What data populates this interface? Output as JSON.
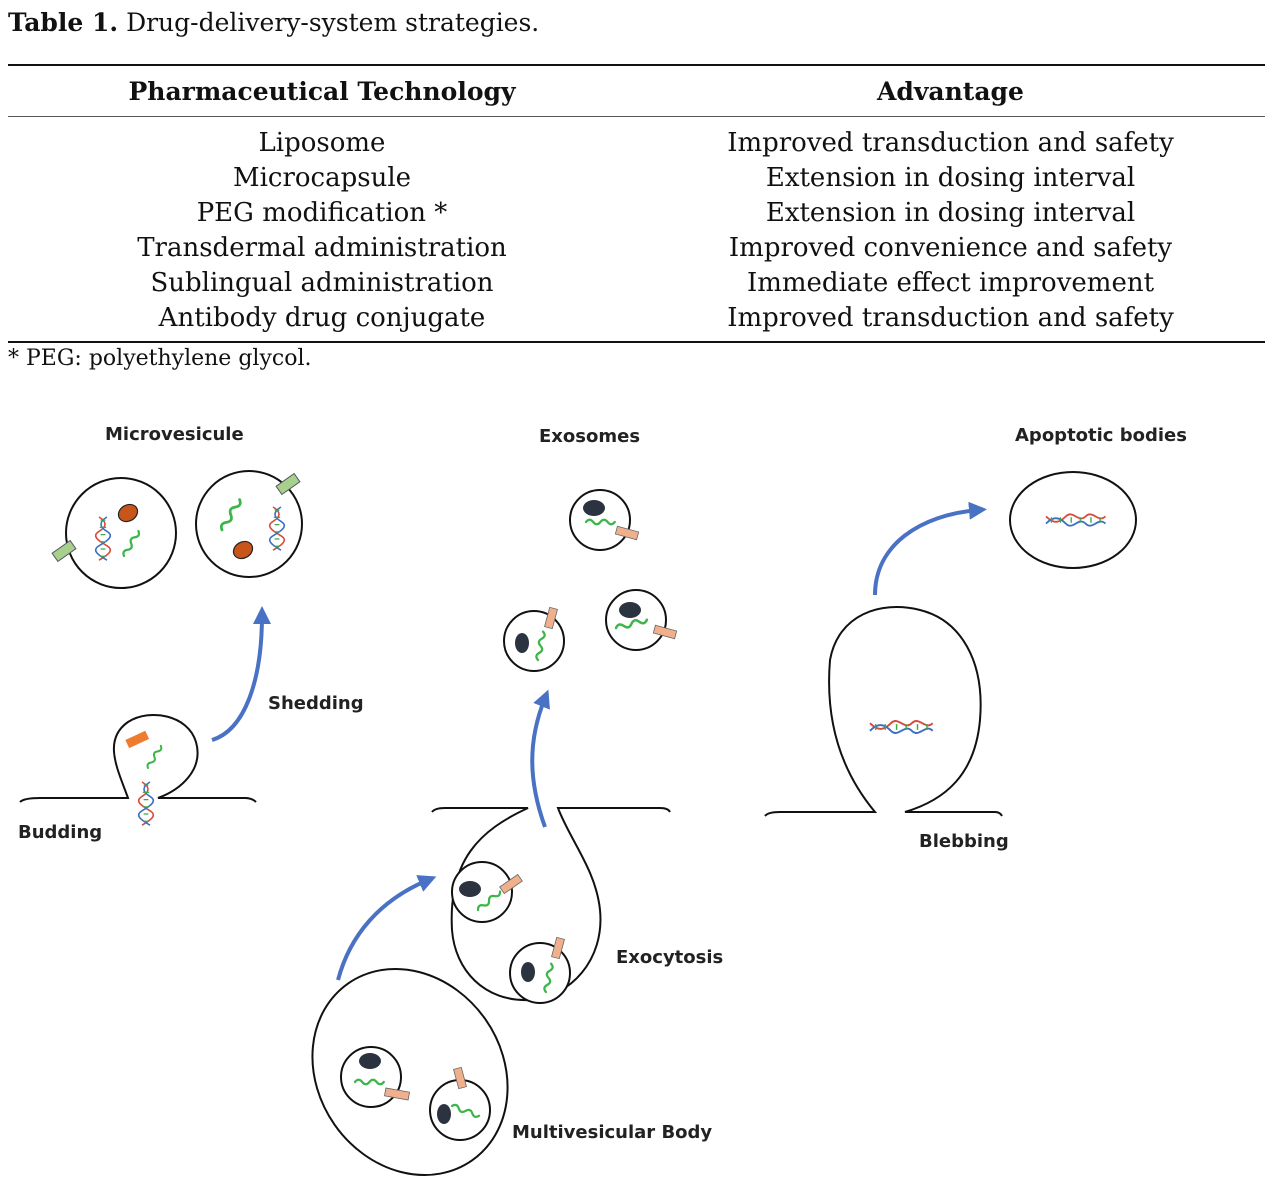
{
  "caption": {
    "label": "Table 1.",
    "text": "Drug-delivery-system strategies."
  },
  "table": {
    "headers": [
      "Pharmaceutical Technology",
      "Advantage"
    ],
    "rows": [
      [
        "Liposome",
        "Improved transduction and safety"
      ],
      [
        "Microcapsule",
        "Extension in dosing interval"
      ],
      [
        "PEG modification *",
        "Extension in dosing interval"
      ],
      [
        "Transdermal administration",
        "Improved convenience and safety"
      ],
      [
        "Sublingual administration",
        "Immediate effect improvement"
      ],
      [
        "Antibody drug conjugate",
        "Improved transduction and safety"
      ]
    ],
    "footnote": "* PEG: polyethylene glycol."
  },
  "figure": {
    "labels": {
      "microvesicule": "Microvesicule",
      "exosomes": "Exosomes",
      "apoptotic": "Apoptotic bodies",
      "shedding": "Shedding",
      "budding": "Budding",
      "blebbing": "Blebbing",
      "exocytosis": "Exocytosis",
      "mvb": "Multivesicular Body"
    },
    "colors": {
      "arrow": "#4a72c4",
      "rna": "#3cb54a",
      "nucleus": "#2b3340",
      "protein_orange": "#c8561a",
      "marker_green": "#a8d08d",
      "marker_peach": "#f0b08c",
      "dna_red": "#d84a3a",
      "dna_blue": "#3a6fc4",
      "dna_green": "#3ca84a"
    }
  }
}
